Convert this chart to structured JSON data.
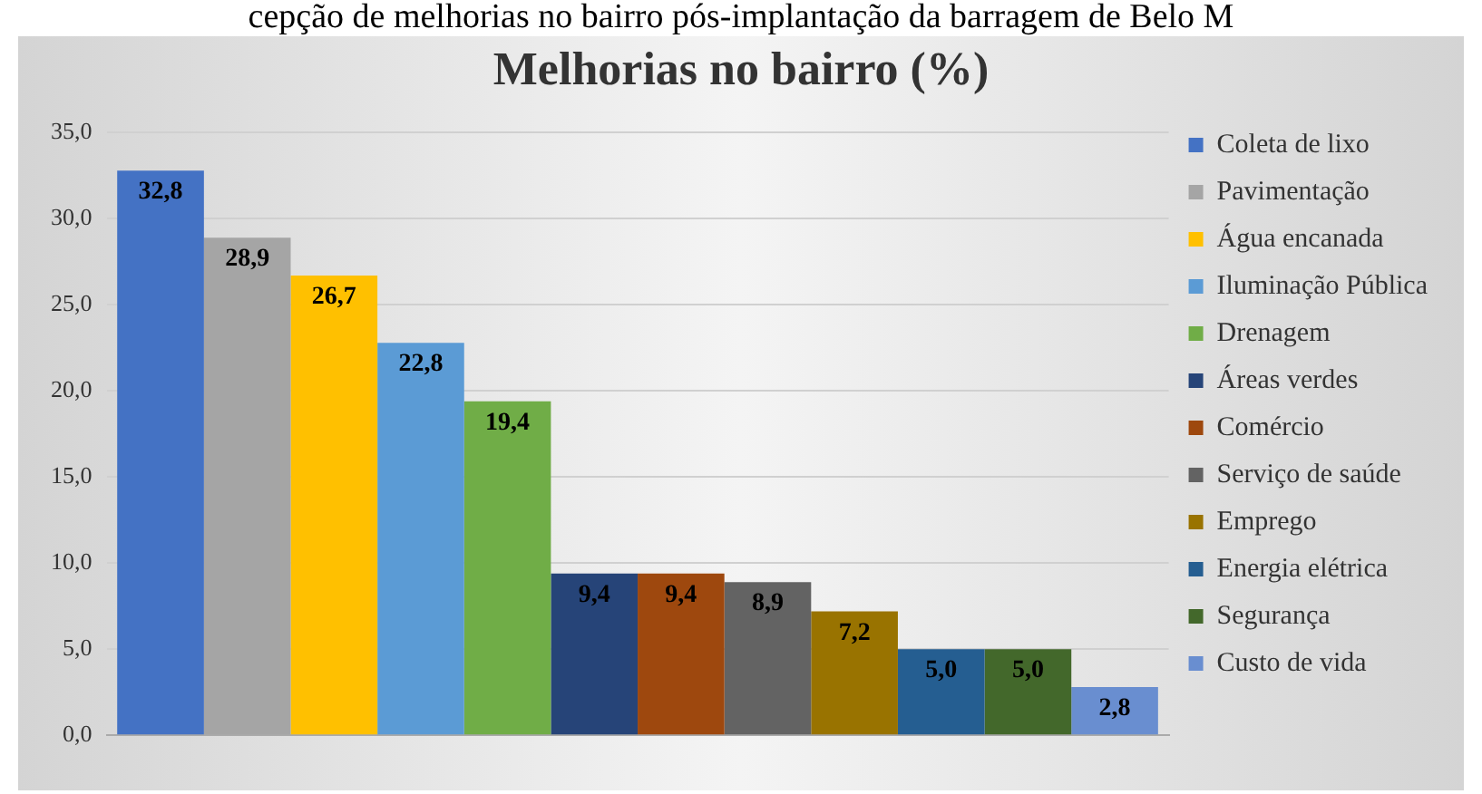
{
  "chart_data": {
    "type": "bar",
    "title": "Melhorias no bairro (%)",
    "annotations": [
      "cepção de melhorias no bairro pós-implantação da barragem de Belo M"
    ],
    "categories": [
      null
    ],
    "series": [
      {
        "name": "Coleta de lixo",
        "color": "#4472c4",
        "values": [
          32.8
        ],
        "value_labels": [
          "32,8"
        ]
      },
      {
        "name": "Pavimentação",
        "color": "#a5a5a5",
        "values": [
          28.9
        ],
        "value_labels": [
          "28,9"
        ]
      },
      {
        "name": "Água encanada",
        "color": "#ffc000",
        "values": [
          26.7
        ],
        "value_labels": [
          "26,7"
        ]
      },
      {
        "name": "Iluminação Pública",
        "color": "#5b9bd5",
        "values": [
          22.8
        ],
        "value_labels": [
          "22,8"
        ]
      },
      {
        "name": "Drenagem",
        "color": "#70ad47",
        "values": [
          19.4
        ],
        "value_labels": [
          "19,4"
        ]
      },
      {
        "name": "Áreas verdes",
        "color": "#264478",
        "values": [
          9.4
        ],
        "value_labels": [
          "9,4"
        ]
      },
      {
        "name": "Comércio",
        "color": "#9e480e",
        "values": [
          9.4
        ],
        "value_labels": [
          "9,4"
        ]
      },
      {
        "name": "Serviço de saúde",
        "color": "#636363",
        "values": [
          8.9
        ],
        "value_labels": [
          "8,9"
        ]
      },
      {
        "name": "Emprego",
        "color": "#997300",
        "values": [
          7.2
        ],
        "value_labels": [
          "7,2"
        ]
      },
      {
        "name": "Energia elétrica",
        "color": "#255e91",
        "values": [
          5.0
        ],
        "value_labels": [
          "5,0"
        ]
      },
      {
        "name": "Segurança",
        "color": "#43682b",
        "values": [
          5.0
        ],
        "value_labels": [
          "5,0"
        ]
      },
      {
        "name": "Custo de vida",
        "color": "#698ed0",
        "values": [
          2.8
        ],
        "value_labels": [
          "2,8"
        ]
      }
    ],
    "ylim": [
      0,
      35
    ],
    "yticks": [
      {
        "value": 0,
        "label": "0,0"
      },
      {
        "value": 5,
        "label": "5,0"
      },
      {
        "value": 10,
        "label": "10,0"
      },
      {
        "value": 15,
        "label": "15,0"
      },
      {
        "value": 20,
        "label": "20,0"
      },
      {
        "value": 25,
        "label": "25,0"
      },
      {
        "value": 30,
        "label": "30,0"
      },
      {
        "value": 35,
        "label": "35,0"
      }
    ],
    "grid": "y",
    "legend": "right"
  }
}
